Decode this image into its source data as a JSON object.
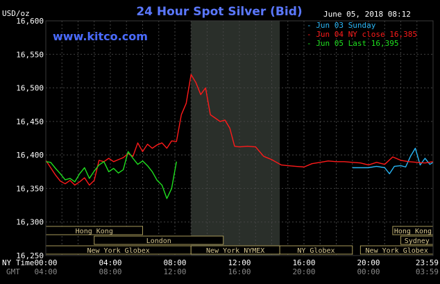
{
  "chart_data": {
    "type": "line",
    "title": "24 Hour Spot Silver (Bid)",
    "ylabel": "USD/oz",
    "ylim": [
      16.25,
      16.6
    ],
    "yticks": [
      "16,600",
      "16,550",
      "16,500",
      "16,450",
      "16,400",
      "16,350",
      "16,300",
      "16,250"
    ],
    "xlim": [
      0,
      24
    ],
    "timestamp": "June 05, 2018 08:12",
    "watermark": "www.kitco.com",
    "grid": true,
    "legend_position": "top-right",
    "x_row_labels": {
      "ny": "NY Time",
      "gmt": "GMT"
    },
    "x_ticks_ny": [
      "00:00",
      "04:00",
      "08:00",
      "12:00",
      "16:00",
      "20:00",
      "23:59"
    ],
    "x_ticks_gmt": [
      "04:00",
      "08:00",
      "12:00",
      "16:00",
      "20:00",
      "00:00",
      "03:59"
    ],
    "x_tick_hours": [
      0,
      4,
      8,
      12,
      16,
      20,
      24
    ],
    "shaded_ranges": [
      [
        9,
        14.5
      ]
    ],
    "sessions": [
      {
        "label": "Hong Kong",
        "start": 0,
        "end": 6
      },
      {
        "label": "London",
        "start": 3,
        "end": 11
      },
      {
        "label": "New York Globex",
        "start": 0,
        "end": 9
      },
      {
        "label": "New York NYMEX",
        "start": 9,
        "end": 14.5
      },
      {
        "label": "NY Globex",
        "start": 14.5,
        "end": 19
      },
      {
        "label": "Hong Kong",
        "start": 21.5,
        "end": 24
      },
      {
        "label": "Sydney",
        "start": 22,
        "end": 24
      },
      {
        "label": "New York Globex",
        "start": 19.5,
        "end": 24
      }
    ],
    "series": [
      {
        "name": "Jun 03 Sunday",
        "color": "#29b6f6",
        "x": [
          19.0,
          19.5,
          20.0,
          20.5,
          21.0,
          21.3,
          21.6,
          22.0,
          22.3,
          22.6,
          22.9,
          23.2,
          23.5,
          23.8,
          24.0
        ],
        "y": [
          16.381,
          16.381,
          16.381,
          16.383,
          16.381,
          16.372,
          16.383,
          16.384,
          16.382,
          16.398,
          16.41,
          16.385,
          16.395,
          16.386,
          16.389
        ]
      },
      {
        "name": "Jun 04 NY close 16,385",
        "color": "#ff1a1a",
        "x": [
          0.0,
          0.3,
          0.6,
          0.9,
          1.2,
          1.5,
          1.8,
          2.1,
          2.4,
          2.7,
          3.0,
          3.3,
          3.6,
          3.9,
          4.2,
          4.5,
          4.8,
          5.1,
          5.4,
          5.7,
          6.0,
          6.3,
          6.6,
          6.9,
          7.2,
          7.5,
          7.8,
          8.1,
          8.4,
          8.7,
          9.0,
          9.3,
          9.6,
          9.9,
          10.2,
          10.5,
          10.8,
          11.1,
          11.4,
          11.7,
          12.0,
          12.5,
          13.0,
          13.5,
          14.0,
          14.3,
          14.6,
          15.0,
          15.5,
          16.0,
          16.5,
          17.0,
          17.5,
          18.0,
          18.5,
          19.0,
          19.5,
          20.0,
          20.5,
          21.0,
          21.5,
          22.0,
          22.5,
          23.0,
          23.5,
          24.0
        ],
        "y": [
          16.392,
          16.381,
          16.37,
          16.361,
          16.357,
          16.362,
          16.355,
          16.36,
          16.366,
          16.355,
          16.362,
          16.392,
          16.39,
          16.395,
          16.39,
          16.393,
          16.396,
          16.402,
          16.398,
          16.418,
          16.405,
          16.416,
          16.41,
          16.415,
          16.418,
          16.41,
          16.421,
          16.42,
          16.46,
          16.477,
          16.52,
          16.508,
          16.49,
          16.5,
          16.46,
          16.455,
          16.45,
          16.452,
          16.44,
          16.413,
          16.412,
          16.413,
          16.412,
          16.398,
          16.393,
          16.389,
          16.385,
          16.384,
          16.383,
          16.382,
          16.387,
          16.389,
          16.391,
          16.39,
          16.39,
          16.389,
          16.388,
          16.385,
          16.389,
          16.386,
          16.397,
          16.392,
          16.39,
          16.389,
          16.388,
          16.39
        ]
      },
      {
        "name": "Jun 05 Last 16,395",
        "color": "#1fe01f",
        "x": [
          0.0,
          0.3,
          0.6,
          0.9,
          1.2,
          1.5,
          1.8,
          2.1,
          2.4,
          2.7,
          3.0,
          3.3,
          3.6,
          3.9,
          4.2,
          4.5,
          4.8,
          5.1,
          5.4,
          5.7,
          6.0,
          6.3,
          6.6,
          6.9,
          7.2,
          7.5,
          7.8,
          8.1
        ],
        "y": [
          16.39,
          16.389,
          16.38,
          16.372,
          16.363,
          16.365,
          16.36,
          16.372,
          16.381,
          16.365,
          16.376,
          16.385,
          16.39,
          16.375,
          16.38,
          16.373,
          16.378,
          16.405,
          16.395,
          16.386,
          16.391,
          16.384,
          16.375,
          16.362,
          16.355,
          16.335,
          16.35,
          16.39
        ]
      }
    ]
  }
}
